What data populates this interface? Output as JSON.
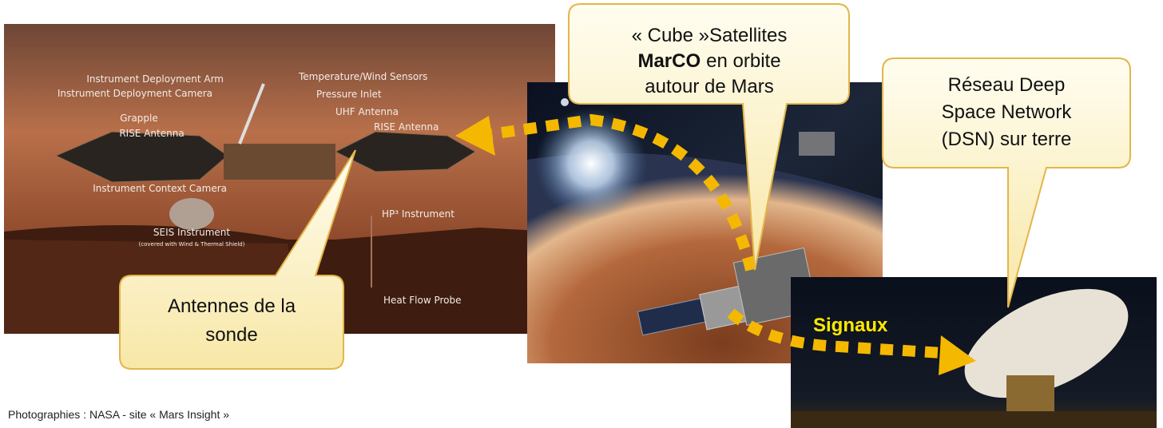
{
  "callouts": {
    "cubesat": {
      "line1": "« Cube »Satellites",
      "bold": "MarCO",
      "line2": "en orbite",
      "line3": "autour de Mars"
    },
    "dsn": {
      "lines": [
        "Réseau Deep",
        "Space Network",
        "(DSN) sur terre"
      ]
    },
    "antennes": {
      "lines": [
        "Antennes de la",
        "sonde"
      ]
    }
  },
  "signal_label": "Signaux",
  "lander_labels": [
    "Instrument Deployment Arm",
    "Instrument Deployment Camera",
    "Grapple",
    "RISE Antenna",
    "Temperature/Wind Sensors",
    "Pressure Inlet",
    "UHF Antenna",
    "RISE Antenna",
    "Instrument Context Camera",
    "SEIS Instrument",
    "(covered with Wind & Thermal Shield)",
    "HP³ Instrument",
    "Heat Flow Probe"
  ],
  "footer": "Photographies : NASA - site « Mars Insight »"
}
